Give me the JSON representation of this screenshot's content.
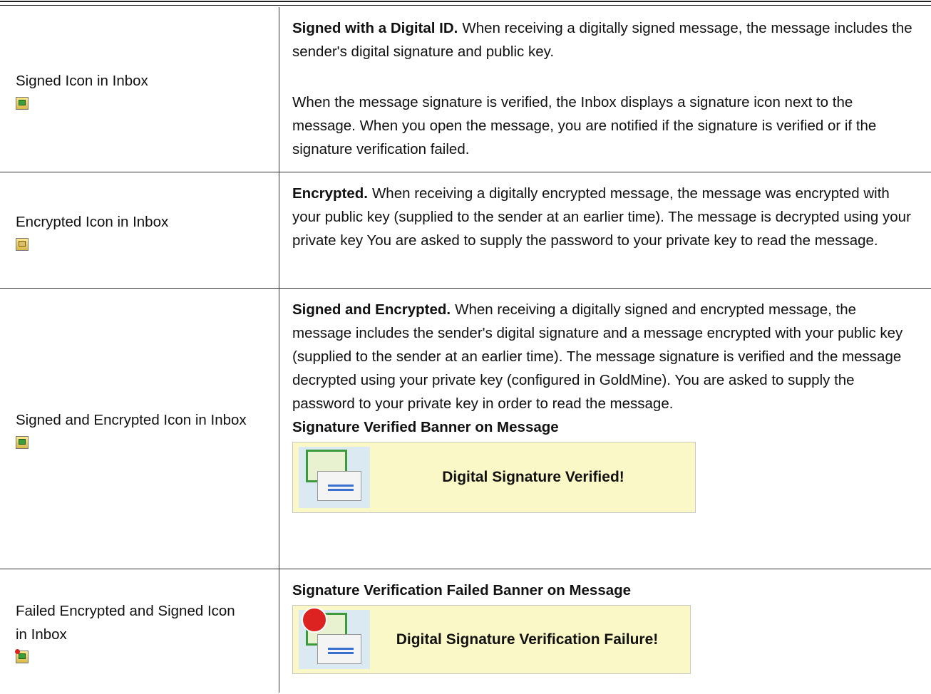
{
  "table": {
    "rows": [
      {
        "label": "Signed Icon in Inbox",
        "lead": "Signed with a Digital ID.",
        "text": "When receiving a digitally signed message, the message includes the sender's digital signature and public key.",
        "text2": "When the message signature is verified, the Inbox displays a signature icon next to the message. When you open the message, you are notified if the signature is verified or if the signature verification failed."
      },
      {
        "label": "Encrypted Icon in Inbox",
        "lead": "Encrypted.",
        "text": "When receiving a digitally encrypted message, the message was encrypted with your public key (supplied to the sender at an earlier time). The message is decrypted using your private key You are asked to supply the password to your private key to read the message."
      },
      {
        "label": "Signed and Encrypted Icon in Inbox",
        "lead": "Signed and Encrypted.",
        "text": "When receiving a digitally signed and encrypted message, the message includes the sender's digital signature and a message encrypted with your public key (supplied to the sender at an earlier time). The message signature is verified and the message decrypted using your private key (configured in GoldMine). You are asked to supply the password to your private key in order to read the message.",
        "caption": "Signature Verified Banner on Message",
        "banner": "Digital Signature Verified!"
      },
      {
        "label": "Failed Encrypted and Signed Icon in Inbox",
        "caption": "Signature Verification Failed Banner on Message",
        "banner": "Digital Signature Verification Failure!"
      }
    ]
  }
}
